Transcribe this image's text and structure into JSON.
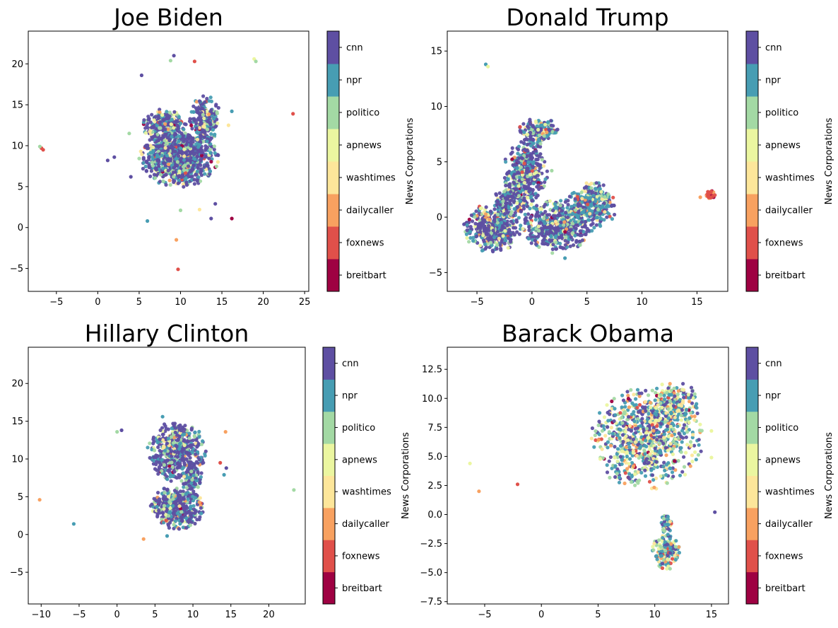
{
  "chart_data": [
    {
      "type": "scatter",
      "title": "Joe Biden",
      "xlabel": "",
      "ylabel": "",
      "xlim": [
        -8.4,
        25.5
      ],
      "ylim": [
        -7.8,
        24
      ],
      "xticks": [
        -5,
        0,
        5,
        10,
        15,
        20,
        25
      ],
      "yticks": [
        -5,
        0,
        5,
        10,
        15,
        20
      ],
      "grid": false,
      "colorbar": {
        "label": "News Corporations",
        "categories": [
          "breitbart",
          "foxnews",
          "dailycaller",
          "washtimes",
          "apnews",
          "politico",
          "npr",
          "cnn"
        ]
      },
      "clusters": [
        {
          "cx": 9.8,
          "cy": 8.6,
          "rx": 4.3,
          "ry": 3.3,
          "n": 900,
          "mix": "cnn"
        },
        {
          "cx": 13.0,
          "cy": 13.2,
          "rx": 1.7,
          "ry": 2.6,
          "n": 260,
          "mix": "cnn"
        },
        {
          "cx": 8.0,
          "cy": 12.5,
          "rx": 2.4,
          "ry": 1.8,
          "n": 240,
          "mix": "cnn"
        }
      ],
      "outliers": [
        {
          "x": -6.8,
          "y": 9.7,
          "c": "foxnews"
        },
        {
          "x": -6.6,
          "y": 9.5,
          "c": "foxnews"
        },
        {
          "x": -7.0,
          "y": 9.9,
          "c": "politico"
        },
        {
          "x": 5.3,
          "y": 18.6,
          "c": "cnn"
        },
        {
          "x": 8.8,
          "y": 20.4,
          "c": "politico"
        },
        {
          "x": 9.2,
          "y": 21.0,
          "c": "cnn"
        },
        {
          "x": 11.7,
          "y": 20.3,
          "c": "foxnews"
        },
        {
          "x": 18.9,
          "y": 20.6,
          "c": "apnews"
        },
        {
          "x": 19.1,
          "y": 20.3,
          "c": "politico"
        },
        {
          "x": 23.6,
          "y": 13.9,
          "c": "foxnews"
        },
        {
          "x": 16.2,
          "y": 14.2,
          "c": "npr"
        },
        {
          "x": 15.8,
          "y": 12.5,
          "c": "washtimes"
        },
        {
          "x": 1.2,
          "y": 8.2,
          "c": "cnn"
        },
        {
          "x": 2.0,
          "y": 8.6,
          "c": "cnn"
        },
        {
          "x": 4.0,
          "y": 6.2,
          "c": "cnn"
        },
        {
          "x": 3.8,
          "y": 11.5,
          "c": "politico"
        },
        {
          "x": 6.0,
          "y": 0.8,
          "c": "npr"
        },
        {
          "x": 9.5,
          "y": -1.5,
          "c": "dailycaller"
        },
        {
          "x": 9.7,
          "y": -5.1,
          "c": "foxnews"
        },
        {
          "x": 13.7,
          "y": 1.1,
          "c": "cnn"
        },
        {
          "x": 16.2,
          "y": 1.1,
          "c": "breitbart"
        },
        {
          "x": 10.0,
          "y": 2.1,
          "c": "politico"
        },
        {
          "x": 12.3,
          "y": 2.2,
          "c": "washtimes"
        },
        {
          "x": 14.2,
          "y": 2.9,
          "c": "cnn"
        }
      ]
    },
    {
      "type": "scatter",
      "title": "Donald Trump",
      "xlabel": "",
      "ylabel": "",
      "xlim": [
        -7.7,
        17.8
      ],
      "ylim": [
        -6.7,
        16.8
      ],
      "xticks": [
        -5,
        0,
        5,
        10,
        15
      ],
      "yticks": [
        -5,
        0,
        5,
        10,
        15
      ],
      "grid": false,
      "colorbar": {
        "label": "News Corporations",
        "categories": [
          "breitbart",
          "foxnews",
          "dailycaller",
          "washtimes",
          "apnews",
          "politico",
          "npr",
          "cnn"
        ]
      },
      "clusters": [
        {
          "cx": -3.6,
          "cy": -1.0,
          "rx": 2.4,
          "ry": 2.0,
          "n": 420,
          "mix": "cnn"
        },
        {
          "cx": -0.6,
          "cy": 4.0,
          "rx": 1.8,
          "ry": 3.0,
          "n": 420,
          "mix": "cnn"
        },
        {
          "cx": 0.6,
          "cy": 7.8,
          "rx": 1.6,
          "ry": 1.1,
          "n": 180,
          "mix": "npr"
        },
        {
          "cx": 2.2,
          "cy": -0.8,
          "rx": 2.8,
          "ry": 2.2,
          "n": 520,
          "mix": "cnn"
        },
        {
          "cx": 5.4,
          "cy": 1.0,
          "rx": 2.0,
          "ry": 2.0,
          "n": 360,
          "mix": "npr"
        },
        {
          "cx": -2.0,
          "cy": 1.6,
          "rx": 1.3,
          "ry": 1.4,
          "n": 160,
          "mix": "cnn"
        },
        {
          "cx": 16.2,
          "cy": 2.0,
          "rx": 0.4,
          "ry": 0.35,
          "n": 50,
          "mix": "foxnews"
        }
      ],
      "outliers": [
        {
          "x": -4.2,
          "y": 13.8,
          "c": "npr"
        },
        {
          "x": -4.0,
          "y": 13.6,
          "c": "apnews"
        },
        {
          "x": 15.3,
          "y": 1.8,
          "c": "dailycaller"
        },
        {
          "x": 1.8,
          "y": 4.2,
          "c": "politico"
        },
        {
          "x": 3.0,
          "y": -3.7,
          "c": "npr"
        }
      ]
    },
    {
      "type": "scatter",
      "title": "Hillary Clinton",
      "xlabel": "",
      "ylabel": "",
      "xlim": [
        -11.7,
        24.8
      ],
      "ylim": [
        -9.2,
        24.8
      ],
      "xticks": [
        -10,
        -5,
        0,
        5,
        10,
        15,
        20
      ],
      "yticks": [
        -5,
        0,
        5,
        10,
        15,
        20
      ],
      "grid": false,
      "colorbar": {
        "label": "News Corporations",
        "categories": [
          "breitbart",
          "foxnews",
          "dailycaller",
          "washtimes",
          "apnews",
          "politico",
          "npr",
          "cnn"
        ]
      },
      "clusters": [
        {
          "cx": 7.8,
          "cy": 11.0,
          "rx": 3.6,
          "ry": 3.6,
          "n": 520,
          "mix": "cnn"
        },
        {
          "cx": 8.0,
          "cy": 3.6,
          "rx": 3.2,
          "ry": 2.6,
          "n": 420,
          "mix": "cnn"
        },
        {
          "cx": 9.8,
          "cy": 7.5,
          "rx": 1.3,
          "ry": 1.5,
          "n": 120,
          "mix": "cnn"
        }
      ],
      "outliers": [
        {
          "x": -10.2,
          "y": 4.6,
          "c": "dailycaller"
        },
        {
          "x": -5.7,
          "y": 1.4,
          "c": "npr"
        },
        {
          "x": 0.0,
          "y": 13.6,
          "c": "politico"
        },
        {
          "x": 0.6,
          "y": 13.8,
          "c": "cnn"
        },
        {
          "x": 3.5,
          "y": -0.6,
          "c": "dailycaller"
        },
        {
          "x": 6.6,
          "y": -0.2,
          "c": "npr"
        },
        {
          "x": 14.3,
          "y": 13.6,
          "c": "dailycaller"
        },
        {
          "x": 13.6,
          "y": 9.5,
          "c": "foxnews"
        },
        {
          "x": 14.4,
          "y": 8.8,
          "c": "cnn"
        },
        {
          "x": 14.1,
          "y": 7.9,
          "c": "npr"
        },
        {
          "x": 23.3,
          "y": 5.9,
          "c": "politico"
        },
        {
          "x": 6.0,
          "y": 15.6,
          "c": "npr"
        }
      ]
    },
    {
      "type": "scatter",
      "title": "Barack Obama",
      "xlabel": "",
      "ylabel": "",
      "xlim": [
        -8.3,
        16.5
      ],
      "ylim": [
        -7.7,
        14.4
      ],
      "xticks": [
        -5,
        0,
        5,
        10,
        15
      ],
      "yticks": [
        -7.5,
        -5.0,
        -2.5,
        0.0,
        2.5,
        5.0,
        7.5,
        10.0,
        12.5
      ],
      "grid": false,
      "colorbar": {
        "label": "News Corporations",
        "categories": [
          "breitbart",
          "foxnews",
          "dailycaller",
          "washtimes",
          "apnews",
          "politico",
          "npr",
          "cnn"
        ]
      },
      "clusters": [
        {
          "cx": 9.3,
          "cy": 6.5,
          "rx": 4.4,
          "ry": 4.0,
          "n": 800,
          "mix": "mixed"
        },
        {
          "cx": 11.8,
          "cy": 9.5,
          "rx": 2.0,
          "ry": 1.8,
          "n": 200,
          "mix": "mixed"
        },
        {
          "cx": 11.0,
          "cy": -3.2,
          "rx": 1.1,
          "ry": 1.4,
          "n": 170,
          "mix": "mixed"
        },
        {
          "cx": 11.0,
          "cy": -0.8,
          "rx": 0.5,
          "ry": 0.9,
          "n": 40,
          "mix": "mixed"
        }
      ],
      "outliers": [
        {
          "x": -6.3,
          "y": 4.4,
          "c": "apnews"
        },
        {
          "x": -5.5,
          "y": 2.0,
          "c": "dailycaller"
        },
        {
          "x": -2.1,
          "y": 2.6,
          "c": "foxnews"
        },
        {
          "x": 15.3,
          "y": 0.2,
          "c": "cnn"
        },
        {
          "x": 15.0,
          "y": 7.2,
          "c": "apnews"
        },
        {
          "x": 15.0,
          "y": 4.9,
          "c": "apnews"
        }
      ]
    }
  ],
  "palette": {
    "breitbart": "#9e0142",
    "foxnews": "#e0504a",
    "dailycaller": "#f8a160",
    "washtimes": "#fde69a",
    "apnews": "#ebf6a0",
    "politico": "#a3d9a4",
    "npr": "#479db3",
    "cnn": "#5e4fa2"
  }
}
